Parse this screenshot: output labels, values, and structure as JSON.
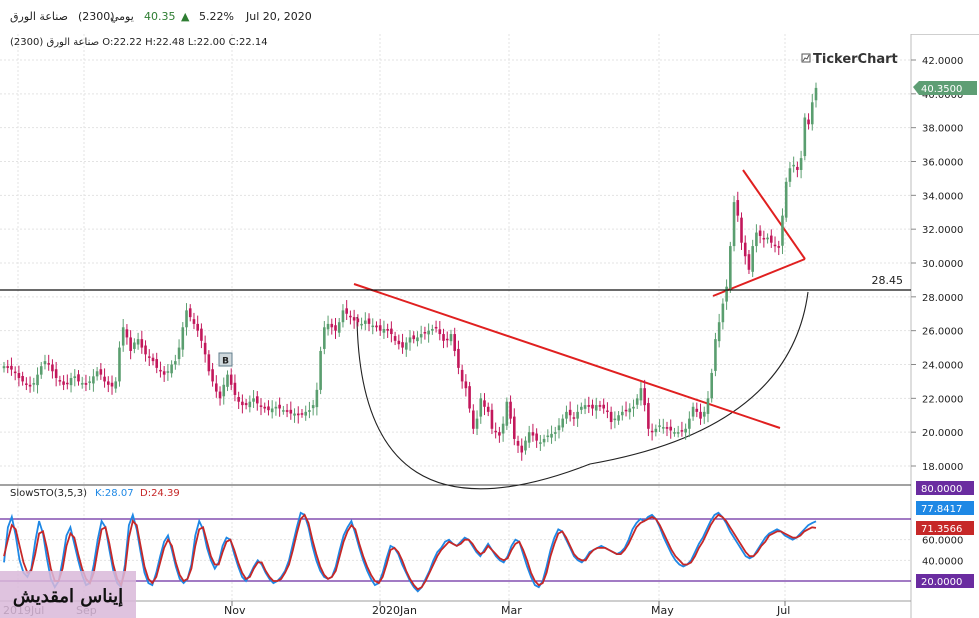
{
  "header": {
    "symbol": "صناعة الورق",
    "code": "(2300)",
    "period": "يومي",
    "price": "40.35",
    "change_pct": "5.22%",
    "date": "Jul 20, 2020"
  },
  "ohlc_line": "صناعة الورق (2300)  O:22.22  H:22.48  L:22.00  C:22.14",
  "brand": "TickerChart",
  "last_price_badge": "40.3500",
  "hline_value": "28.45",
  "marker_label": "B",
  "stoch": {
    "title": "SlowSTO(3,5,3)",
    "k_label": "K:28.07",
    "d_label": "D:24.39",
    "upper_badge": "80.0000",
    "lower_badge": "20.0000",
    "k_badge": "77.8417",
    "d_badge": "71.3566"
  },
  "watermark": "إيناس امقديش",
  "colors": {
    "up": "#5a9e6f",
    "down": "#c2185b",
    "k": "#1e88e5",
    "d": "#c62828",
    "trend": "#e02020",
    "band": "#6a2ca0",
    "price_badge": "#5e9e74"
  },
  "chart_data": {
    "type": "candlestick",
    "y_ticks": [
      "42.0000",
      "40.0000",
      "38.0000",
      "36.0000",
      "34.0000",
      "32.0000",
      "30.0000",
      "28.0000",
      "26.0000",
      "24.0000",
      "22.0000",
      "20.0000",
      "18.0000"
    ],
    "stoch_ticks": [
      "60.0000",
      "40.0000"
    ],
    "x_labels": [
      "2019Jul",
      "Sep",
      "Nov",
      "2020Jan",
      "Mar",
      "May",
      "Jul"
    ],
    "ylim": [
      17,
      43.5
    ],
    "stoch_ylim": [
      0,
      100
    ],
    "closes": [
      23.9,
      23.8,
      23.7,
      23.5,
      23.2,
      23.0,
      22.8,
      22.7,
      22.9,
      23.4,
      23.9,
      24.2,
      24.0,
      23.6,
      23.2,
      23.0,
      22.8,
      22.9,
      23.2,
      23.3,
      23.0,
      22.9,
      22.8,
      23.0,
      23.3,
      23.6,
      23.4,
      23.0,
      22.8,
      22.7,
      23.0,
      25.0,
      26.2,
      25.6,
      24.8,
      25.3,
      25.5,
      25.0,
      24.6,
      24.4,
      24.2,
      23.8,
      23.6,
      23.4,
      23.6,
      24.0,
      24.2,
      25.0,
      26.2,
      27.2,
      26.8,
      26.4,
      26.0,
      25.4,
      24.6,
      23.6,
      23.0,
      22.4,
      22.0,
      22.8,
      23.4,
      22.8,
      22.2,
      21.8,
      21.6,
      21.6,
      21.8,
      22.0,
      21.7,
      21.5,
      21.4,
      21.3,
      21.4,
      21.5,
      21.4,
      21.3,
      21.2,
      21.1,
      21.1,
      21.0,
      21.1,
      21.2,
      21.3,
      21.6,
      22.5,
      24.8,
      26.2,
      26.4,
      26.2,
      26.0,
      26.5,
      27.2,
      27.0,
      26.8,
      26.6,
      26.5,
      26.4,
      26.6,
      26.4,
      26.3,
      26.2,
      26.0,
      26.1,
      26.0,
      25.8,
      25.4,
      25.2,
      25.0,
      25.3,
      25.6,
      25.5,
      25.6,
      25.8,
      25.9,
      26.0,
      26.1,
      26.2,
      25.8,
      25.4,
      25.5,
      25.8,
      24.8,
      23.8,
      23.0,
      22.6,
      21.4,
      20.2,
      20.8,
      22.0,
      21.5,
      21.2,
      20.2,
      20.0,
      19.8,
      20.5,
      21.8,
      20.8,
      19.6,
      19.2,
      18.8,
      19.5,
      20.0,
      19.8,
      19.5,
      19.4,
      19.6,
      19.8,
      19.9,
      20.0,
      20.4,
      20.8,
      21.2,
      21.0,
      20.8,
      21.2,
      21.5,
      21.6,
      21.5,
      21.4,
      21.6,
      21.5,
      21.4,
      21.2,
      20.6,
      20.8,
      21.0,
      21.2,
      21.3,
      21.4,
      21.5,
      22.0,
      22.6,
      21.6,
      20.2,
      20.0,
      20.2,
      20.4,
      20.3,
      20.2,
      20.1,
      20.0,
      20.0,
      20.1,
      20.2,
      20.8,
      21.5,
      21.2,
      20.8,
      21.2,
      22.0,
      23.5,
      25.5,
      26.5,
      27.6,
      28.6,
      31.0,
      33.6,
      32.8,
      31.2,
      30.4,
      29.6,
      31.0,
      31.8,
      31.6,
      31.4,
      31.5,
      31.2,
      31.0,
      30.9,
      32.8,
      34.8,
      35.6,
      35.8,
      35.5,
      36.2,
      38.6,
      38.2,
      39.5,
      40.35
    ],
    "stoch_k": [
      38,
      72,
      82,
      64,
      40,
      28,
      24,
      32,
      58,
      78,
      66,
      42,
      22,
      14,
      20,
      40,
      64,
      72,
      56,
      40,
      26,
      16,
      18,
      36,
      60,
      78,
      72,
      50,
      30,
      18,
      14,
      36,
      74,
      84,
      70,
      48,
      28,
      18,
      16,
      28,
      44,
      58,
      64,
      50,
      34,
      22,
      18,
      22,
      36,
      64,
      78,
      70,
      52,
      40,
      32,
      38,
      54,
      62,
      60,
      46,
      34,
      24,
      20,
      26,
      34,
      40,
      36,
      28,
      22,
      18,
      20,
      24,
      30,
      40,
      56,
      72,
      86,
      84,
      72,
      54,
      40,
      30,
      24,
      22,
      24,
      34,
      50,
      64,
      72,
      78,
      66,
      52,
      40,
      30,
      22,
      16,
      18,
      28,
      42,
      54,
      52,
      46,
      36,
      28,
      20,
      14,
      10,
      14,
      22,
      30,
      40,
      48,
      52,
      58,
      60,
      56,
      54,
      58,
      62,
      60,
      54,
      48,
      44,
      50,
      56,
      50,
      44,
      40,
      38,
      44,
      54,
      60,
      58,
      46,
      34,
      24,
      16,
      14,
      20,
      34,
      50,
      62,
      70,
      68,
      60,
      52,
      44,
      40,
      38,
      42,
      48,
      50,
      52,
      54,
      52,
      50,
      48,
      46,
      48,
      52,
      60,
      70,
      76,
      80,
      78,
      82,
      84,
      80,
      72,
      62,
      54,
      46,
      40,
      36,
      34,
      36,
      40,
      48,
      56,
      62,
      70,
      78,
      84,
      86,
      82,
      76,
      68,
      62,
      56,
      50,
      44,
      42,
      44,
      50,
      56,
      62,
      66,
      68,
      70,
      68,
      64,
      62,
      60,
      62,
      66,
      70,
      74,
      76,
      77.8
    ],
    "stoch_d": [
      44,
      60,
      74,
      70,
      54,
      38,
      28,
      30,
      46,
      66,
      68,
      52,
      32,
      20,
      20,
      32,
      54,
      66,
      62,
      46,
      32,
      22,
      18,
      28,
      50,
      70,
      72,
      56,
      36,
      22,
      16,
      30,
      62,
      78,
      74,
      54,
      34,
      22,
      18,
      24,
      38,
      52,
      60,
      54,
      38,
      26,
      20,
      22,
      32,
      54,
      70,
      72,
      58,
      44,
      36,
      36,
      48,
      58,
      60,
      50,
      38,
      28,
      22,
      24,
      32,
      38,
      38,
      30,
      24,
      20,
      20,
      22,
      28,
      36,
      50,
      66,
      80,
      84,
      76,
      60,
      46,
      34,
      26,
      22,
      24,
      30,
      44,
      58,
      68,
      74,
      70,
      56,
      44,
      34,
      26,
      20,
      18,
      24,
      36,
      50,
      52,
      48,
      40,
      30,
      22,
      16,
      12,
      14,
      20,
      28,
      36,
      44,
      50,
      54,
      58,
      56,
      54,
      56,
      60,
      60,
      56,
      50,
      46,
      48,
      54,
      50,
      46,
      42,
      40,
      42,
      50,
      56,
      58,
      50,
      40,
      28,
      20,
      16,
      18,
      28,
      44,
      56,
      66,
      68,
      62,
      54,
      46,
      42,
      40,
      40,
      46,
      50,
      52,
      52,
      52,
      50,
      48,
      46,
      46,
      50,
      56,
      64,
      72,
      76,
      78,
      80,
      82,
      80,
      74,
      66,
      58,
      50,
      44,
      40,
      36,
      36,
      38,
      44,
      52,
      58,
      66,
      74,
      80,
      84,
      82,
      78,
      72,
      66,
      60,
      54,
      48,
      44,
      44,
      48,
      54,
      58,
      64,
      66,
      68,
      68,
      66,
      64,
      62,
      62,
      64,
      68,
      70,
      72,
      71.4
    ]
  }
}
